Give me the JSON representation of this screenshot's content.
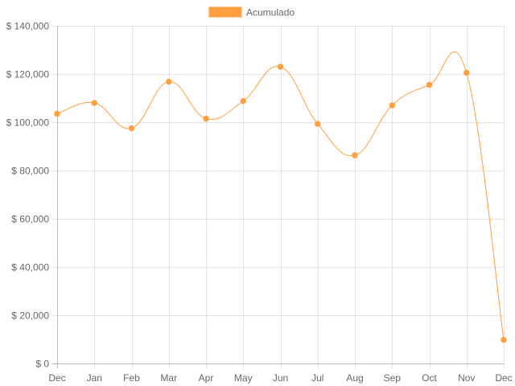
{
  "chart_data": {
    "type": "line",
    "title": "",
    "xlabel": "",
    "ylabel": "",
    "categories": [
      "Dec",
      "Jan",
      "Feb",
      "Mar",
      "Apr",
      "May",
      "Jun",
      "Jul",
      "Aug",
      "Sep",
      "Oct",
      "Nov",
      "Dec"
    ],
    "series": [
      {
        "name": "Acumulado",
        "color": "#ff9f40",
        "values": [
          103500,
          108000,
          97500,
          116800,
          101500,
          108800,
          123000,
          99300,
          86300,
          107000,
          115500,
          120500,
          9800
        ]
      }
    ],
    "ylim": [
      0,
      140000
    ],
    "y_ticks": [
      0,
      20000,
      40000,
      60000,
      80000,
      100000,
      120000,
      140000
    ],
    "y_tick_labels": [
      "$ 0",
      "$ 20,000",
      "$ 40,000",
      "$ 60,000",
      "$ 80,000",
      "$ 100,000",
      "$ 120,000",
      "$ 140,000"
    ],
    "grid": true,
    "legend_position": "top",
    "line_smooth": true
  }
}
